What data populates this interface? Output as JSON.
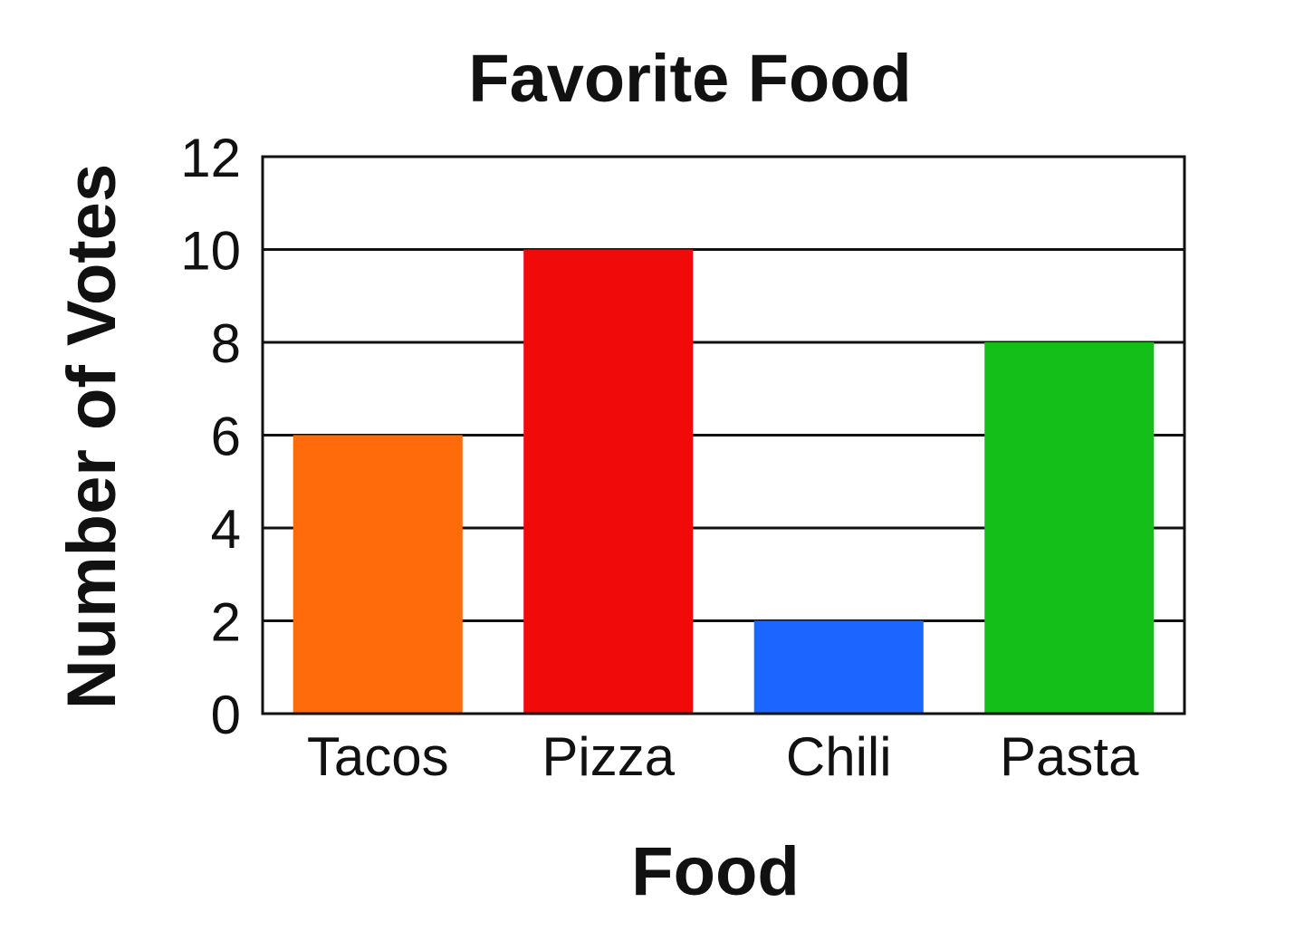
{
  "chart_data": {
    "type": "bar",
    "title": "Favorite Food",
    "xlabel": "Food",
    "ylabel": "Number of Votes",
    "categories": [
      "Tacos",
      "Pizza",
      "Chili",
      "Pasta"
    ],
    "values": [
      6,
      10,
      2,
      8
    ],
    "colors": [
      "#ff6a0a",
      "#f00a0a",
      "#1a66ff",
      "#14bf1a"
    ],
    "ylim": [
      0,
      12
    ],
    "yticks": [
      0,
      2,
      4,
      6,
      8,
      10,
      12
    ],
    "grid": true,
    "legend": "none"
  }
}
